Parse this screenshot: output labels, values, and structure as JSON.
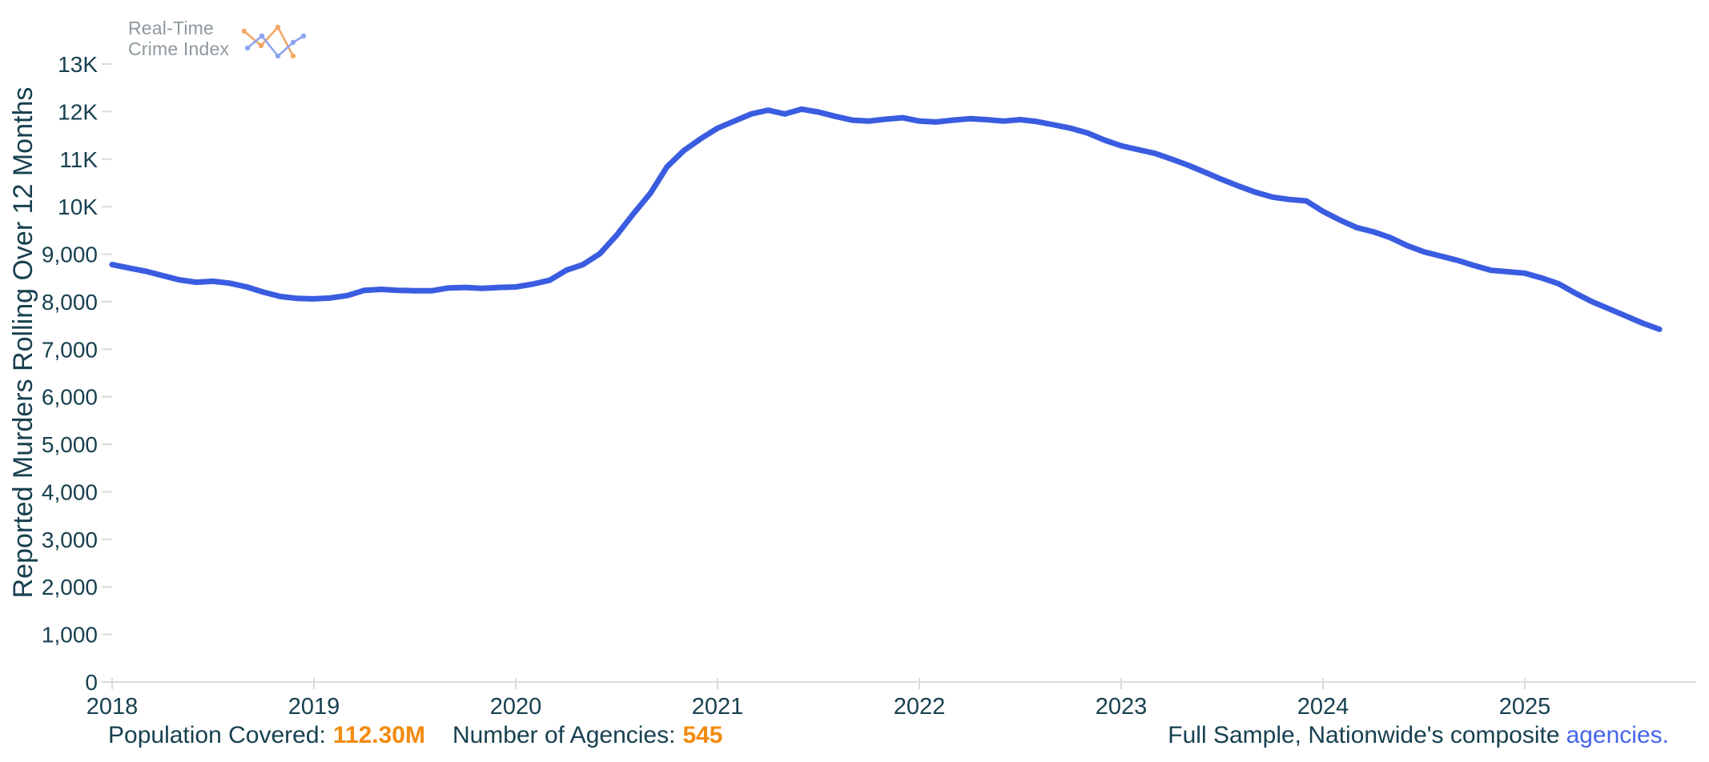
{
  "logo": {
    "line1": "Real-Time",
    "line2": "Crime Index"
  },
  "chart_data": {
    "type": "line",
    "title": "",
    "xlabel": "",
    "ylabel": "Reported Murders Rolling Over 12 Months",
    "x_ticks": [
      "2018",
      "2019",
      "2020",
      "2021",
      "2022",
      "2023",
      "2024",
      "2025"
    ],
    "y_ticks": [
      "0",
      "1,000",
      "2,000",
      "3,000",
      "4,000",
      "5,000",
      "6,000",
      "7,000",
      "8,000",
      "9,000",
      "10K",
      "11K",
      "12K",
      "13K"
    ],
    "ylim": [
      0,
      13000
    ],
    "xlim": [
      2018,
      2025.85
    ],
    "grid": "off",
    "legend": "none",
    "line_color": "#3A5CE0",
    "series": [
      {
        "name": "Reported Murders Rolling Over 12 Months",
        "x": [
          2018.0,
          2018.083,
          2018.167,
          2018.25,
          2018.333,
          2018.417,
          2018.5,
          2018.583,
          2018.667,
          2018.75,
          2018.833,
          2018.917,
          2019.0,
          2019.083,
          2019.167,
          2019.25,
          2019.333,
          2019.417,
          2019.5,
          2019.583,
          2019.667,
          2019.75,
          2019.833,
          2019.917,
          2020.0,
          2020.083,
          2020.167,
          2020.25,
          2020.333,
          2020.417,
          2020.5,
          2020.583,
          2020.667,
          2020.75,
          2020.833,
          2020.917,
          2021.0,
          2021.083,
          2021.167,
          2021.25,
          2021.333,
          2021.417,
          2021.5,
          2021.583,
          2021.667,
          2021.75,
          2021.833,
          2021.917,
          2022.0,
          2022.083,
          2022.167,
          2022.25,
          2022.333,
          2022.417,
          2022.5,
          2022.583,
          2022.667,
          2022.75,
          2022.833,
          2022.917,
          2023.0,
          2023.083,
          2023.167,
          2023.25,
          2023.333,
          2023.417,
          2023.5,
          2023.583,
          2023.667,
          2023.75,
          2023.833,
          2023.917,
          2024.0,
          2024.083,
          2024.167,
          2024.25,
          2024.333,
          2024.417,
          2024.5,
          2024.583,
          2024.667,
          2024.75,
          2024.833,
          2024.917,
          2025.0,
          2025.083,
          2025.167,
          2025.25,
          2025.333,
          2025.417,
          2025.5,
          2025.583,
          2025.667
        ],
        "values": [
          8780,
          8710,
          8640,
          8550,
          8460,
          8410,
          8430,
          8390,
          8310,
          8200,
          8110,
          8070,
          8060,
          8080,
          8130,
          8240,
          8260,
          8240,
          8230,
          8230,
          8290,
          8300,
          8280,
          8300,
          8310,
          8370,
          8450,
          8660,
          8780,
          9010,
          9400,
          9850,
          10280,
          10840,
          11180,
          11430,
          11650,
          11800,
          11950,
          12030,
          11950,
          12050,
          11990,
          11900,
          11820,
          11800,
          11840,
          11870,
          11800,
          11780,
          11820,
          11850,
          11830,
          11800,
          11830,
          11790,
          11720,
          11650,
          11550,
          11400,
          11280,
          11200,
          11120,
          11000,
          10870,
          10720,
          10570,
          10430,
          10300,
          10200,
          10150,
          10120,
          9900,
          9720,
          9560,
          9470,
          9350,
          9180,
          9050,
          8960,
          8870,
          8760,
          8660,
          8630,
          8600,
          8500,
          8380,
          8180,
          8000,
          7850,
          7700,
          7550,
          7420
        ]
      }
    ]
  },
  "footer": {
    "population_label": "Population Covered:",
    "population_value": "112.30M",
    "agencies_label": "Number of Agencies:",
    "agencies_value": "545",
    "sample_text": "Full Sample, Nationwide's composite",
    "sample_link": "agencies."
  },
  "colors": {
    "line": "#3A5CE0",
    "axis_text": "#17404F",
    "accent_orange": "#F28A0E",
    "link_blue": "#4566E8",
    "logo_gray": "#8E999E",
    "logo_icon_orange": "#F2A763",
    "logo_icon_blue": "#8CA4F0",
    "axis_line": "#D8DCDC"
  }
}
